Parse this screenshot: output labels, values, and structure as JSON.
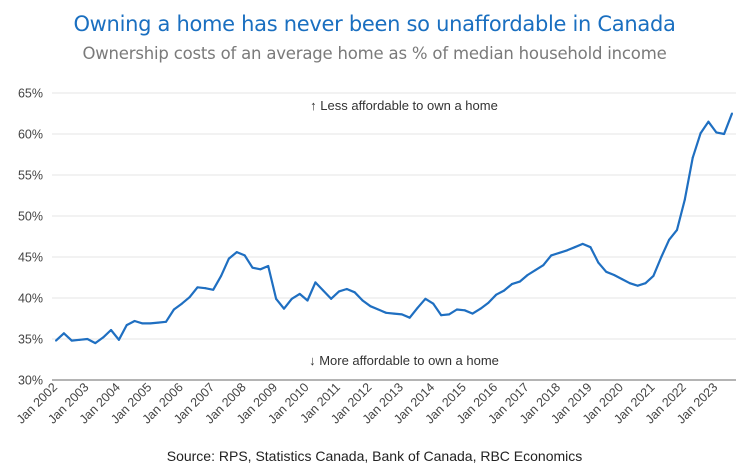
{
  "chart_data": {
    "type": "line",
    "title": "Owning a home has never been so unaffordable in Canada",
    "subtitle": "Ownership costs of an average home as % of median household income",
    "source": "Source: RPS, Statistics Canada, Bank of Canada, RBC Economics",
    "xlabel": "",
    "ylabel": "",
    "ylim": [
      30,
      65
    ],
    "yticks": [
      30,
      35,
      40,
      45,
      50,
      55,
      60,
      65
    ],
    "ytick_labels": [
      "30%",
      "35%",
      "40%",
      "45%",
      "50%",
      "55%",
      "60%",
      "65%"
    ],
    "x_start": "Q1 2002",
    "x_frequency": "quarterly",
    "xtick_labels": [
      "Jan 2002",
      "Jan 2003",
      "Jan 2004",
      "Jan 2005",
      "Jan 2006",
      "Jan 2007",
      "Jan 2008",
      "Jan 2009",
      "Jan 2010",
      "Jan 2011",
      "Jan 2012",
      "Jan 2013",
      "Jan 2014",
      "Jan 2015",
      "Jan 2016",
      "Jan 2017",
      "Jan 2018",
      "Jan 2019",
      "Jan 2020",
      "Jan 2021",
      "Jan 2022",
      "Jan 2023"
    ],
    "annotations": {
      "top": "↑ Less affordable to own a home",
      "bottom": "↓ More affordable to own a home"
    },
    "grid": true,
    "legend": "none",
    "series": [
      {
        "name": "Ownership costs (% of median household income)",
        "color": "#1f6fc1",
        "values": [
          34.8,
          35.7,
          34.8,
          34.9,
          35.0,
          34.5,
          35.2,
          36.1,
          34.9,
          36.7,
          37.2,
          36.9,
          36.9,
          37.0,
          37.1,
          38.6,
          39.3,
          40.1,
          41.3,
          41.2,
          41.0,
          42.7,
          44.8,
          45.6,
          45.2,
          43.7,
          43.5,
          43.9,
          39.9,
          38.7,
          39.9,
          40.5,
          39.7,
          41.9,
          40.9,
          39.9,
          40.8,
          41.1,
          40.7,
          39.7,
          39.0,
          38.6,
          38.2,
          38.1,
          38.0,
          37.6,
          38.8,
          39.9,
          39.3,
          37.9,
          38.0,
          38.6,
          38.5,
          38.1,
          38.7,
          39.4,
          40.4,
          40.9,
          41.7,
          42.0,
          42.8,
          43.4,
          44.0,
          45.2,
          45.5,
          45.8,
          46.2,
          46.6,
          46.2,
          44.3,
          43.2,
          42.8,
          42.3,
          41.8,
          41.5,
          41.8,
          42.7,
          45.0,
          47.1,
          48.3,
          52.0,
          57.1,
          60.1,
          61.5,
          60.2,
          60.0,
          62.5
        ]
      }
    ]
  }
}
